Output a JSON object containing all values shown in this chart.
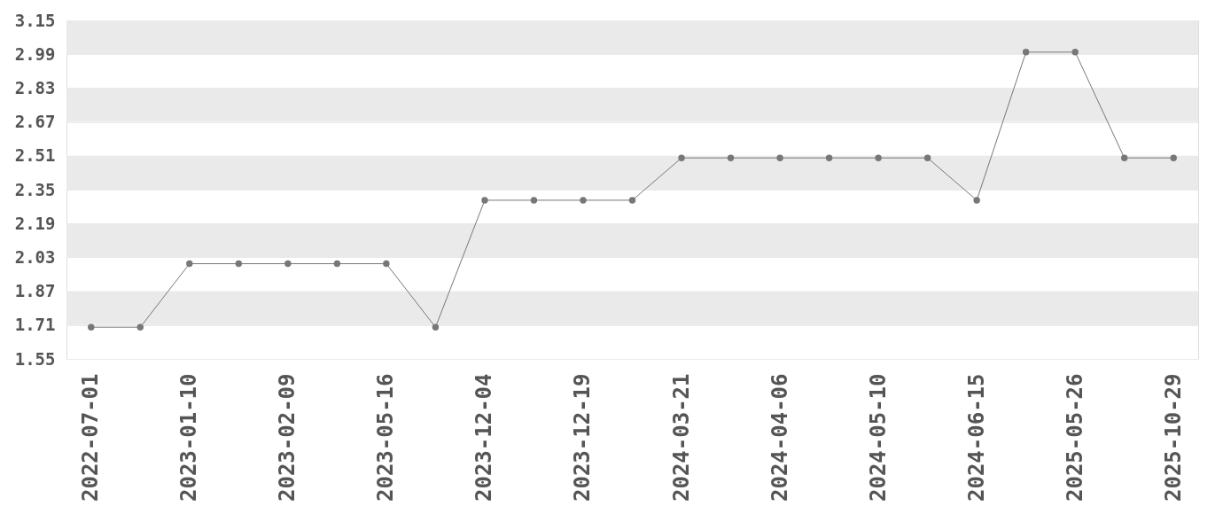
{
  "chart_data": {
    "type": "line",
    "categories": [
      "2022-07-01",
      null,
      "2023-01-10",
      null,
      "2023-02-09",
      null,
      "2023-05-16",
      null,
      "2023-12-04",
      null,
      "2023-12-19",
      null,
      "2024-03-21",
      null,
      "2024-04-06",
      null,
      "2024-05-10",
      null,
      "2024-06-15",
      null,
      "2025-05-26",
      null,
      "2025-10-29"
    ],
    "series": [
      {
        "color": "#777777",
        "values": [
          1.7,
          1.7,
          2.0,
          2.0,
          2.0,
          2.0,
          2.0,
          1.7,
          2.3,
          2.3,
          2.3,
          2.3,
          2.5,
          2.5,
          2.5,
          2.5,
          2.5,
          2.5,
          2.3,
          3.0,
          3.0,
          2.5,
          2.5
        ]
      }
    ],
    "ylim": [
      1.55,
      3.15
    ],
    "yticks": [
      1.55,
      1.71,
      1.87,
      2.03,
      2.19,
      2.35,
      2.51,
      2.67,
      2.83,
      2.99,
      3.15
    ],
    "grid": "y",
    "marker": "circle",
    "line_style": "solid"
  }
}
